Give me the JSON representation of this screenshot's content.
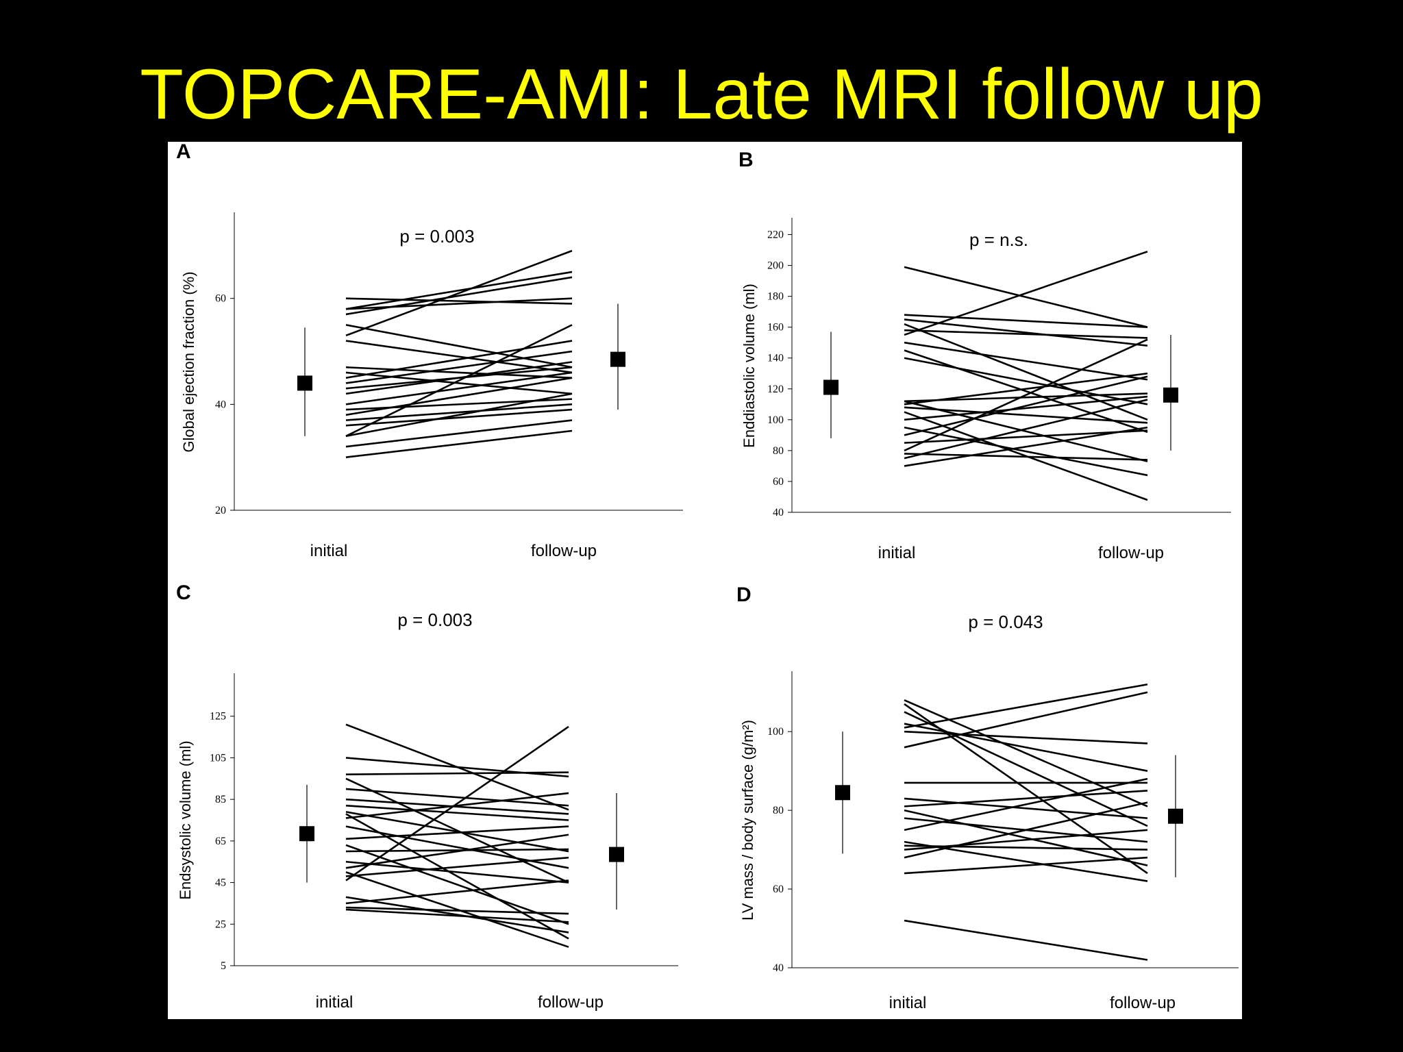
{
  "slide": {
    "title": "TOPCARE-AMI: Late MRI follow up"
  },
  "chart_data": [
    {
      "type": "line",
      "panel": "A",
      "annotation": "p = 0.003",
      "ylabel": "Global ejection fraction (%)",
      "categories": [
        "initial",
        "follow-up"
      ],
      "yticks": [
        20,
        40,
        60
      ],
      "ylim": [
        20,
        76
      ],
      "grid": false,
      "summary": [
        {
          "category": "initial",
          "mean": 44,
          "low": 34,
          "high": 54.5
        },
        {
          "category": "follow-up",
          "mean": 48.5,
          "low": 39,
          "high": 59
        }
      ],
      "series": [
        {
          "values": [
            30,
            35
          ]
        },
        {
          "values": [
            32,
            37
          ]
        },
        {
          "values": [
            34,
            42
          ]
        },
        {
          "values": [
            34,
            55
          ]
        },
        {
          "values": [
            36,
            39
          ]
        },
        {
          "values": [
            37,
            40
          ]
        },
        {
          "values": [
            38,
            45
          ]
        },
        {
          "values": [
            39,
            41
          ]
        },
        {
          "values": [
            40,
            46
          ]
        },
        {
          "values": [
            42,
            48
          ]
        },
        {
          "values": [
            43,
            47
          ]
        },
        {
          "values": [
            44,
            50
          ]
        },
        {
          "values": [
            45,
            52
          ]
        },
        {
          "values": [
            46,
            42
          ]
        },
        {
          "values": [
            47,
            45
          ]
        },
        {
          "values": [
            52,
            46
          ]
        },
        {
          "values": [
            53,
            69
          ]
        },
        {
          "values": [
            55,
            47
          ]
        },
        {
          "values": [
            57,
            64
          ]
        },
        {
          "values": [
            58,
            65
          ]
        },
        {
          "values": [
            58,
            60
          ]
        },
        {
          "values": [
            60,
            59
          ]
        }
      ]
    },
    {
      "type": "line",
      "panel": "B",
      "annotation": "p = n.s.",
      "ylabel": "Enddiastolic volume (ml)",
      "categories": [
        "initial",
        "follow-up"
      ],
      "yticks": [
        40,
        60,
        80,
        100,
        120,
        140,
        160,
        180,
        200,
        220
      ],
      "ylim": [
        40,
        230
      ],
      "grid": false,
      "summary": [
        {
          "category": "initial",
          "mean": 121,
          "low": 88,
          "high": 157
        },
        {
          "category": "follow-up",
          "mean": 116,
          "low": 80,
          "high": 155
        }
      ],
      "series": [
        {
          "values": [
            70,
            95
          ]
        },
        {
          "values": [
            75,
            113
          ]
        },
        {
          "values": [
            78,
            74
          ]
        },
        {
          "values": [
            80,
            152
          ]
        },
        {
          "values": [
            85,
            93
          ]
        },
        {
          "values": [
            90,
            128
          ]
        },
        {
          "values": [
            95,
            64
          ]
        },
        {
          "values": [
            100,
            115
          ]
        },
        {
          "values": [
            105,
            48
          ]
        },
        {
          "values": [
            108,
            98
          ]
        },
        {
          "values": [
            110,
            130
          ]
        },
        {
          "values": [
            112,
            117
          ]
        },
        {
          "values": [
            112,
            73
          ]
        },
        {
          "values": [
            140,
            110
          ]
        },
        {
          "values": [
            145,
            92
          ]
        },
        {
          "values": [
            150,
            126
          ]
        },
        {
          "values": [
            155,
            209
          ]
        },
        {
          "values": [
            158,
            153
          ]
        },
        {
          "values": [
            162,
            100
          ]
        },
        {
          "values": [
            165,
            148
          ]
        },
        {
          "values": [
            168,
            160
          ]
        },
        {
          "values": [
            199,
            160
          ]
        }
      ]
    },
    {
      "type": "line",
      "panel": "C",
      "annotation": "p = 0.003",
      "ylabel": "Endsystolic volume (ml)",
      "categories": [
        "initial",
        "follow-up"
      ],
      "yticks": [
        5,
        25,
        45,
        65,
        85,
        105,
        125
      ],
      "ylim": [
        5,
        145
      ],
      "grid": false,
      "summary": [
        {
          "category": "initial",
          "mean": 68.5,
          "low": 45,
          "high": 92
        },
        {
          "category": "follow-up",
          "mean": 58.5,
          "low": 32,
          "high": 88
        }
      ],
      "series": [
        {
          "values": [
            32,
            26
          ]
        },
        {
          "values": [
            33,
            30
          ]
        },
        {
          "values": [
            35,
            46
          ]
        },
        {
          "values": [
            38,
            21
          ]
        },
        {
          "values": [
            46,
            120
          ]
        },
        {
          "values": [
            48,
            57
          ]
        },
        {
          "values": [
            50,
            14
          ]
        },
        {
          "values": [
            52,
            68
          ]
        },
        {
          "values": [
            55,
            45
          ]
        },
        {
          "values": [
            60,
            61
          ]
        },
        {
          "values": [
            63,
            25
          ]
        },
        {
          "values": [
            66,
            72
          ]
        },
        {
          "values": [
            72,
            52
          ]
        },
        {
          "values": [
            76,
            88
          ]
        },
        {
          "values": [
            78,
            18
          ]
        },
        {
          "values": [
            79,
            60
          ]
        },
        {
          "values": [
            82,
            75
          ]
        },
        {
          "values": [
            85,
            78
          ]
        },
        {
          "values": [
            90,
            82
          ]
        },
        {
          "values": [
            95,
            45
          ]
        },
        {
          "values": [
            97,
            98
          ]
        },
        {
          "values": [
            105,
            96
          ]
        },
        {
          "values": [
            121,
            80
          ]
        }
      ]
    },
    {
      "type": "line",
      "panel": "D",
      "annotation": "p = 0.043",
      "ylabel": "LV mass / body surface (g/m²)",
      "categories": [
        "initial",
        "follow-up"
      ],
      "yticks": [
        40,
        60,
        80,
        100
      ],
      "ylim": [
        40,
        115
      ],
      "grid": false,
      "summary": [
        {
          "category": "initial",
          "mean": 84.5,
          "low": 69,
          "high": 100
        },
        {
          "category": "follow-up",
          "mean": 78.5,
          "low": 63,
          "high": 94
        }
      ],
      "series": [
        {
          "values": [
            52,
            42
          ]
        },
        {
          "values": [
            64,
            68
          ]
        },
        {
          "values": [
            68,
            82
          ]
        },
        {
          "values": [
            70,
            75
          ]
        },
        {
          "values": [
            71,
            70
          ]
        },
        {
          "values": [
            72,
            62
          ]
        },
        {
          "values": [
            75,
            88
          ]
        },
        {
          "values": [
            78,
            72
          ]
        },
        {
          "values": [
            80,
            66
          ]
        },
        {
          "values": [
            81,
            85
          ]
        },
        {
          "values": [
            83,
            78
          ]
        },
        {
          "values": [
            87,
            87
          ]
        },
        {
          "values": [
            96,
            110
          ]
        },
        {
          "values": [
            100,
            97
          ]
        },
        {
          "values": [
            101,
            112
          ]
        },
        {
          "values": [
            102,
            90
          ]
        },
        {
          "values": [
            105,
            76
          ]
        },
        {
          "values": [
            107,
            64
          ]
        },
        {
          "values": [
            108,
            81
          ]
        }
      ]
    }
  ]
}
